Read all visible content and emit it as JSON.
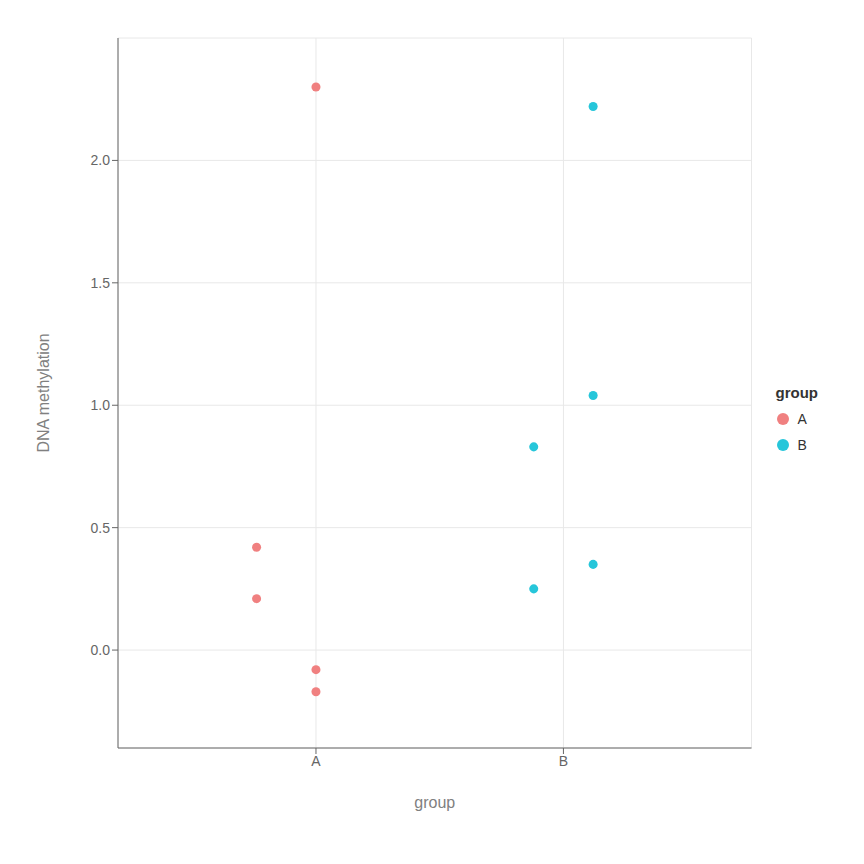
{
  "chart_data": {
    "type": "scatter",
    "xlabel": "group",
    "ylabel": "DNA methylation",
    "legend_title": "group",
    "series": [
      {
        "name": "A",
        "color": "#F08080",
        "x": [
          0.85,
          0.85,
          1.0,
          1.0,
          1.0
        ],
        "values": [
          0.42,
          0.21,
          2.3,
          -0.08,
          -0.17
        ]
      },
      {
        "name": "B",
        "color": "#26C6DA",
        "x": [
          1.55,
          1.7,
          1.7,
          1.7,
          1.55
        ],
        "values": [
          0.83,
          2.22,
          1.04,
          0.35,
          0.25
        ]
      }
    ],
    "xlim": [
      0.5,
      2.1
    ],
    "xticks": [
      {
        "value": 1.0,
        "label": "A"
      },
      {
        "value": 1.625,
        "label": "B"
      }
    ],
    "ylim": [
      -0.4,
      2.5
    ],
    "yticks": [
      {
        "value": 0.0,
        "label": "0.0"
      },
      0.5,
      {
        "value": 1.0,
        "label": "1.0"
      },
      1.5,
      {
        "value": 2.0,
        "label": "2.0"
      }
    ],
    "grid": true,
    "legend": "right"
  }
}
